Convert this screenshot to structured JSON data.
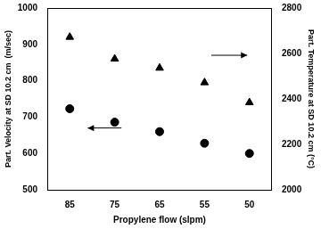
{
  "chart_data": {
    "type": "scatter",
    "x_label": "Propylene flow (slpm)",
    "y_label": "Part. Velocity at SD 10.2 cm  (m/sec)",
    "y2_label": "Part. Temperature at SD 10.2 cm (°C)",
    "categories": [
      "85",
      "75",
      "65",
      "55",
      "50"
    ],
    "series": [
      {
        "color": "#000000",
        "marker": "circle",
        "values": [
          723,
          686,
          660,
          628,
          600
        ]
      },
      {
        "color": "#000000",
        "marker": "triangle",
        "axis": "y2",
        "values": [
          2672,
          2576,
          2536,
          2472,
          2384
        ]
      }
    ],
    "ylim": [
      500,
      1000
    ],
    "yticks": [
      500,
      600,
      700,
      800,
      900,
      1000
    ],
    "y2lim": [
      2000,
      2800
    ],
    "y2ticks": [
      2000,
      2200,
      2400,
      2600,
      2800
    ],
    "grid": false
  }
}
